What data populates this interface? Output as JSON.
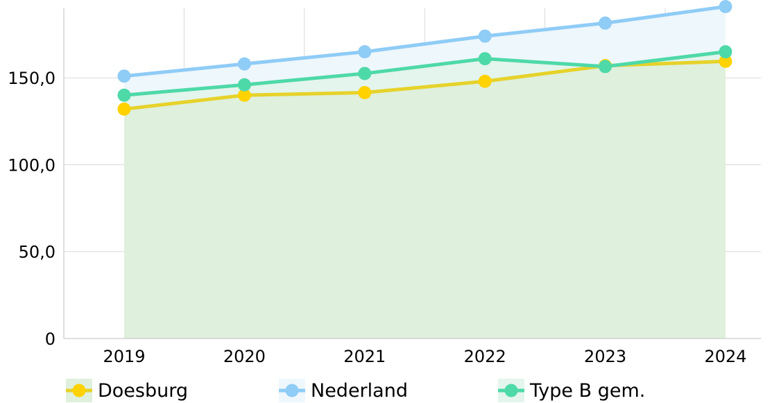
{
  "chart_data": {
    "type": "line",
    "x": [
      "2019",
      "2020",
      "2021",
      "2022",
      "2023",
      "2024"
    ],
    "ylim": [
      0,
      190
    ],
    "y_ticks": [
      0,
      50,
      100,
      150
    ],
    "y_tick_labels": [
      "0",
      "50,0",
      "100,0",
      "150,0"
    ],
    "grid": true,
    "legend_position": "bottom",
    "series": [
      {
        "name": "Doesburg",
        "values": [
          132,
          140,
          141.5,
          148,
          157,
          159.5
        ],
        "color": "#FFD200",
        "line_color": "#E6D22A",
        "fill": "#DFF0DC"
      },
      {
        "name": "Nederland",
        "values": [
          151,
          158,
          165,
          174,
          181.5,
          191
        ],
        "color": "#8FCCF6",
        "line_color": "#8FCCF6",
        "fill": "#EEF7FC"
      },
      {
        "name": "Type B gem.",
        "values": [
          140,
          146,
          152.5,
          161,
          156.5,
          165
        ],
        "color": "#4ED9A8",
        "line_color": "#4ED9A8",
        "fill": "#E3F5EC"
      }
    ]
  }
}
